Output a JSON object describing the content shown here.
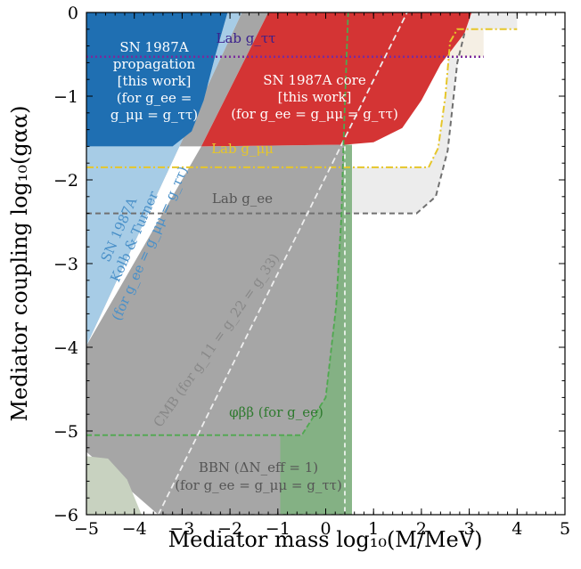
{
  "chart_data": {
    "type": "area",
    "title": "",
    "xlabel": "Mediator mass log₁₀(M/MeV)",
    "ylabel": "Mediator coupling log₁₀(gαα)",
    "xlim": [
      -5,
      5
    ],
    "ylim": [
      -6,
      0
    ],
    "x_ticks": [
      -5,
      -4,
      -3,
      -2,
      -1,
      0,
      1,
      2,
      3,
      4,
      5
    ],
    "y_ticks": [
      0,
      -1,
      -2,
      -3,
      -4,
      -5,
      -6
    ],
    "x_tick_labels": [
      "−5",
      "−4",
      "−3",
      "−2",
      "−1",
      "0",
      "1",
      "2",
      "3",
      "4",
      "5"
    ],
    "y_tick_labels": [
      "0",
      "−1",
      "−2",
      "−3",
      "−4",
      "−5",
      "−6"
    ],
    "grid": false,
    "colors": {
      "propagation": "#1f6fb2",
      "kolb_turner": "#a7cce6",
      "core": "#d43434",
      "cmb": "#a6a6a6",
      "bbn": "#bdbdbd",
      "bbn_low": "#c8d2c0",
      "double_beta": "#78b478",
      "lab_ee": "#707070",
      "lab_mumu": "#e6c62a",
      "lab_tautau": "#7a2a9c",
      "lab_fill": "#ececec"
    },
    "regions": [
      {
        "name": "sn_propagation",
        "points": [
          [
            -5,
            0
          ],
          [
            -2.05,
            0
          ],
          [
            -2.3,
            -0.5
          ],
          [
            -2.55,
            -1.05
          ],
          [
            -2.8,
            -1.42
          ],
          [
            -3.2,
            -1.6
          ],
          [
            -5,
            -1.6
          ]
        ]
      },
      {
        "name": "kolb_turner",
        "points": [
          [
            -5,
            -1.6
          ],
          [
            -3.2,
            -1.6
          ],
          [
            -2.8,
            -1.42
          ],
          [
            -2.55,
            -1.05
          ],
          [
            -2.3,
            -0.5
          ],
          [
            -2.05,
            0
          ],
          [
            -1.75,
            0
          ],
          [
            -5,
            -3.98
          ]
        ]
      },
      {
        "name": "sn_core",
        "points": [
          [
            -2.6,
            -1.6
          ],
          [
            -1.2,
            0
          ],
          [
            3.05,
            0
          ],
          [
            2.9,
            -0.25
          ],
          [
            2.4,
            -0.62
          ],
          [
            2.0,
            -1.05
          ],
          [
            1.6,
            -1.38
          ],
          [
            1.0,
            -1.55
          ],
          [
            0.4,
            -1.58
          ],
          [
            -2.6,
            -1.6
          ]
        ]
      },
      {
        "name": "cmb",
        "points": [
          [
            -5,
            -3.98
          ],
          [
            -1.75,
            0
          ],
          [
            -1.2,
            0
          ],
          [
            -2.6,
            -1.6
          ],
          [
            -3.2,
            -1.6
          ],
          [
            -5,
            -3.98
          ]
        ]
      },
      {
        "name": "cmb_lower",
        "points": [
          [
            -5,
            -3.98
          ],
          [
            -2.6,
            -1.6
          ],
          [
            0.4,
            -1.58
          ],
          [
            0.4,
            -6
          ],
          [
            -3.5,
            -6
          ],
          [
            -5,
            -5.25
          ]
        ]
      },
      {
        "name": "bbn",
        "points": [
          [
            -3.5,
            -6
          ],
          [
            0.4,
            -6
          ],
          [
            0.4,
            -1.58
          ],
          [
            0.55,
            -1.58
          ],
          [
            0.55,
            -6
          ]
        ]
      },
      {
        "name": "bbn_low",
        "points": [
          [
            -5,
            -5.3
          ],
          [
            -4.55,
            -5.33
          ],
          [
            -4.15,
            -5.58
          ],
          [
            -3.85,
            -6
          ],
          [
            -5,
            -6
          ]
        ]
      },
      {
        "name": "double_beta",
        "points": [
          [
            -0.95,
            -5.05
          ],
          [
            -0.5,
            -5.05
          ],
          [
            0.0,
            -4.6
          ],
          [
            0.22,
            -3.5
          ],
          [
            0.33,
            -2.42
          ],
          [
            0.37,
            -1.58
          ],
          [
            0.55,
            -1.58
          ],
          [
            0.55,
            -1.0
          ],
          [
            0.45,
            -0.3
          ],
          [
            0.47,
            0
          ],
          [
            0.55,
            0
          ],
          [
            0.55,
            -6
          ],
          [
            -0.95,
            -6
          ]
        ]
      }
    ],
    "series": [
      {
        "name": "lab_ee",
        "points": [
          [
            -5,
            -2.4
          ],
          [
            1.9,
            -2.4
          ],
          [
            2.3,
            -2.2
          ],
          [
            2.55,
            -1.65
          ],
          [
            2.75,
            -0.6
          ],
          [
            2.9,
            -0.25
          ]
        ]
      },
      {
        "name": "lab_mumu",
        "points": [
          [
            -5,
            -1.85
          ],
          [
            2.15,
            -1.85
          ],
          [
            2.35,
            -1.62
          ],
          [
            2.5,
            -1.0
          ],
          [
            2.6,
            -0.35
          ],
          [
            2.75,
            -0.2
          ],
          [
            4.0,
            -0.2
          ]
        ]
      },
      {
        "name": "lab_tautau",
        "points": [
          [
            -5,
            -0.53
          ],
          [
            3.3,
            -0.53
          ]
        ]
      },
      {
        "name": "cmb_equal",
        "points": [
          [
            -3.5,
            -6
          ],
          [
            1.7,
            0
          ]
        ]
      },
      {
        "name": "double_beta_line",
        "points": [
          [
            -5,
            -5.05
          ],
          [
            -0.95,
            -5.05
          ],
          [
            -0.5,
            -5.05
          ],
          [
            0.0,
            -4.6
          ],
          [
            0.22,
            -3.5
          ],
          [
            0.33,
            -2.42
          ],
          [
            0.37,
            -1.58
          ],
          [
            0.45,
            -0.3
          ],
          [
            0.47,
            0
          ]
        ]
      },
      {
        "name": "bbn_boundary",
        "points": [
          [
            -3.5,
            -6
          ],
          [
            0.4,
            -6
          ]
        ]
      }
    ],
    "labels": {
      "sn_propagation": [
        "SN 1987A",
        "propagation",
        "[this work]",
        "(for g_ee =",
        "g_μμ = g_ττ)"
      ],
      "sn_core": [
        "SN 1987A core",
        "[this work]",
        "(for g_ee = g_μμ = g_ττ)"
      ],
      "kolb_turner": [
        "SN 1987A",
        "Kolb & Turner",
        "(for g_ee = g_μμ = g_ττ)"
      ],
      "lab_tautau": "Lab g_ττ",
      "lab_mumu": "Lab g_μμ",
      "lab_ee": "Lab g_ee",
      "cmb": "CMB (for g_11 = g_22 = g_33)",
      "double_beta": "φββ (for g_ee)",
      "bbn": [
        "BBN (ΔN_eff = 1)",
        "(for g_ee = g_μμ = g_ττ)"
      ]
    }
  }
}
